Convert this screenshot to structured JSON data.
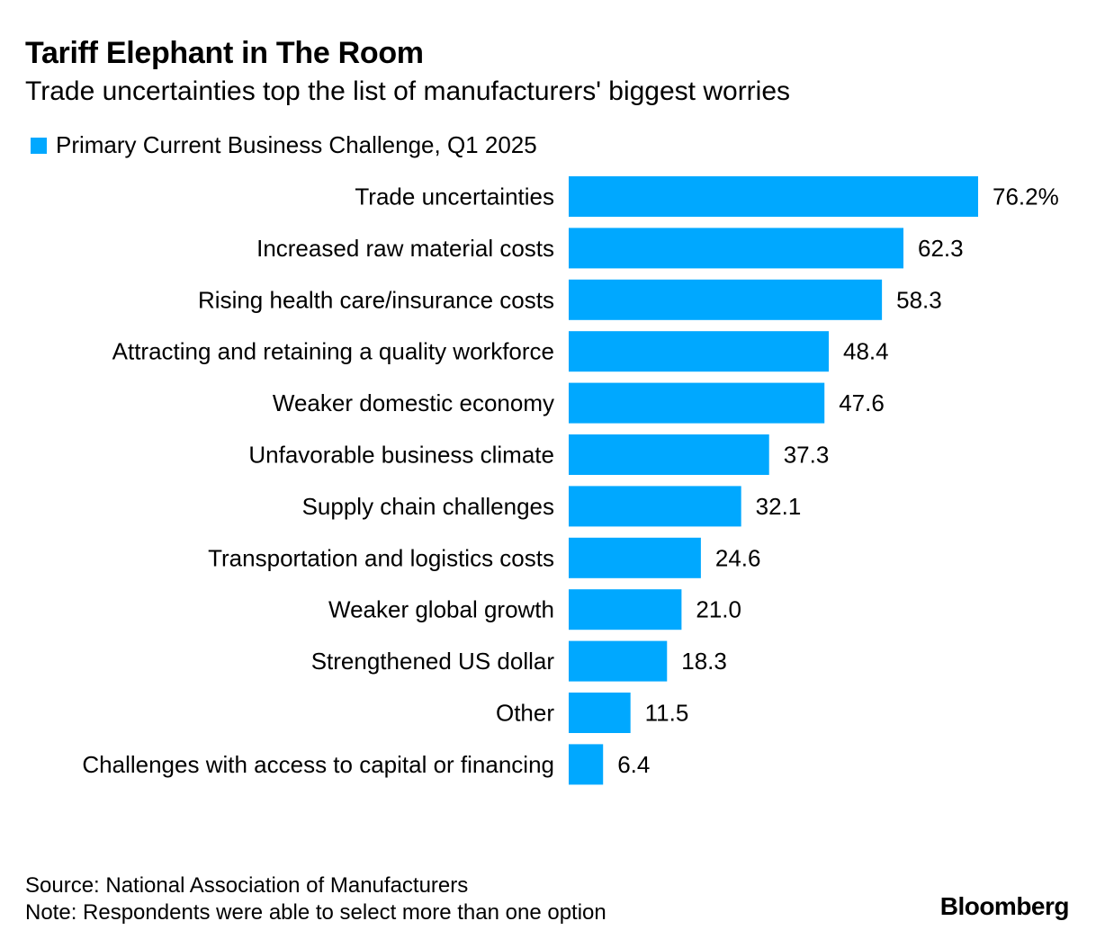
{
  "header": {
    "title": "Tariff Elephant in The Room",
    "subtitle": "Trade uncertainties top the list of manufacturers' biggest worries"
  },
  "legend": {
    "label": "Primary Current Business Challenge, Q1 2025"
  },
  "colors": {
    "bar": "#00a8ff",
    "text": "#000000",
    "background": "#ffffff"
  },
  "chart_data": {
    "type": "bar",
    "orientation": "horizontal",
    "title": "Tariff Elephant in The Room",
    "subtitle": "Trade uncertainties top the list of manufacturers' biggest worries",
    "xlabel": "",
    "ylabel": "",
    "xlim": [
      0,
      76.2
    ],
    "grid": false,
    "legend_position": "top-left",
    "series": [
      {
        "name": "Primary Current Business Challenge, Q1 2025",
        "values": [
          76.2,
          62.3,
          58.3,
          48.4,
          47.6,
          37.3,
          32.1,
          24.6,
          21.0,
          18.3,
          11.5,
          6.4
        ]
      }
    ],
    "categories": [
      "Trade uncertainties",
      "Increased raw material costs",
      "Rising health care/insurance costs",
      "Attracting and retaining a quality workforce",
      "Weaker domestic economy",
      "Unfavorable business climate",
      "Supply chain challenges",
      "Transportation and logistics costs",
      "Weaker global growth",
      "Strengthened US dollar",
      "Other",
      "Challenges with access to capital or financing"
    ],
    "value_labels": [
      "76.2%",
      "62.3",
      "58.3",
      "48.4",
      "47.6",
      "37.3",
      "32.1",
      "24.6",
      "21.0",
      "18.3",
      "11.5",
      "6.4"
    ]
  },
  "footer": {
    "source": "Source: National Association of Manufacturers",
    "note": "Note: Respondents were able to select more than one option",
    "brand": "Bloomberg"
  }
}
